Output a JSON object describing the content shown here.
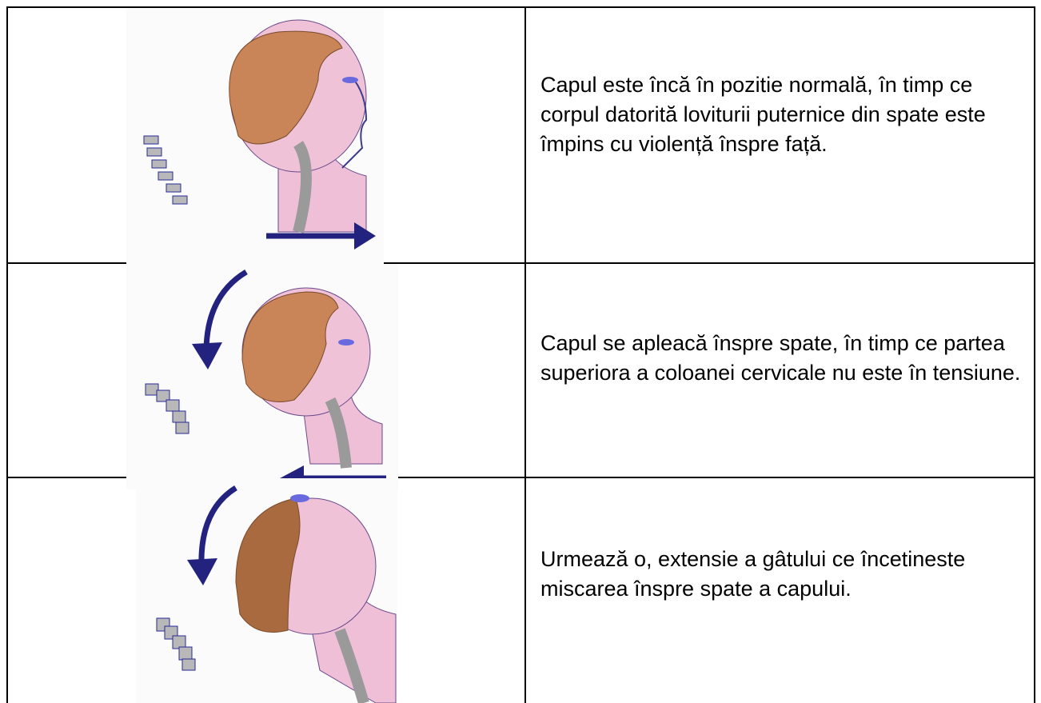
{
  "table": {
    "rows": [
      {
        "text": "Capul este încă în pozitie normală, în timp ce corpul datorită loviturii puternice din spate este împins cu violență înspre față."
      },
      {
        "text": "Capul se apleacă înspre spate, în timp ce partea superiora a coloanei cervicale nu este în tensiune."
      },
      {
        "text": "Urmează o, extensie a gâtului ce încetineste miscarea înspre spate a capului."
      }
    ]
  }
}
